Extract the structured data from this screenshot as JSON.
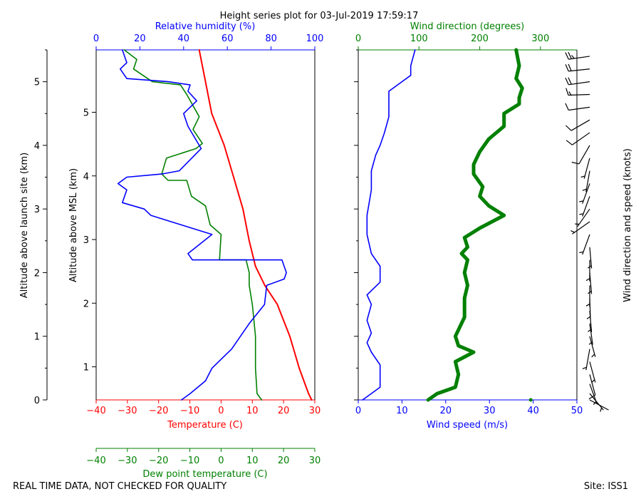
{
  "colors": {
    "temperature": "#ff0000",
    "dewpoint": "#008000",
    "humidity": "#0000ff",
    "wind_speed": "#0000ff",
    "wind_direction": "#008000",
    "axis": "#000000"
  },
  "footer": {
    "quality_note": "REAL TIME DATA, NOT CHECKED FOR QUALITY",
    "site": "Site: ISS1"
  },
  "chart_data": [
    {
      "type": "line",
      "title": "Height series plot for 03-Jul-2019 17:59:17",
      "ylabel_left": "Altitude above launch site (km)",
      "ylabel": "Altitude above MSL (km)",
      "ylim": [
        0,
        5.5
      ],
      "launch_site_ticks": [
        0,
        1,
        2,
        3,
        4,
        5
      ],
      "msl_ticks": [
        1,
        2,
        3,
        4,
        5
      ],
      "msl_tick_labels": [
        "1",
        "2",
        "3",
        "4",
        "5"
      ],
      "axes": {
        "temperature": {
          "label": "Temperature (C)",
          "range": [
            -40,
            30
          ],
          "ticks": [
            -40,
            -30,
            -20,
            -10,
            0,
            10,
            20,
            30
          ],
          "tick_labels": [
            "−40",
            "−30",
            "−20",
            "−10",
            "0",
            "10",
            "20",
            "30"
          ]
        },
        "dewpoint": {
          "label": "Dew point temperature (C)",
          "range": [
            -40,
            30
          ],
          "ticks": [
            -40,
            -30,
            -20,
            -10,
            0,
            10,
            20,
            30
          ],
          "tick_labels": [
            "−40",
            "−30",
            "−20",
            "−10",
            "0",
            "10",
            "20",
            "30"
          ]
        },
        "humidity": {
          "label": "Relative humidity (%)",
          "range": [
            0,
            100
          ],
          "ticks": [
            0,
            20,
            40,
            60,
            80,
            100
          ],
          "tick_labels": [
            "0",
            "20",
            "40",
            "60",
            "80",
            "100"
          ]
        }
      },
      "series": [
        {
          "name": "Temperature",
          "axis": "temperature",
          "points": [
            [
              29,
              0
            ],
            [
              28,
              0.1
            ],
            [
              25,
              0.5
            ],
            [
              22,
              1.0
            ],
            [
              18,
              1.5
            ],
            [
              14,
              1.8
            ],
            [
              11,
              2.1
            ],
            [
              10.5,
              2.2
            ],
            [
              9,
              2.5
            ],
            [
              7,
              3.0
            ],
            [
              4,
              3.5
            ],
            [
              1,
              4.0
            ],
            [
              -3,
              4.5
            ],
            [
              -5,
              5.0
            ],
            [
              -7,
              5.5
            ]
          ]
        },
        {
          "name": "Dew point",
          "axis": "dewpoint",
          "points": [
            [
              13,
              0
            ],
            [
              11.5,
              0.1
            ],
            [
              11,
              0.5
            ],
            [
              11,
              1.0
            ],
            [
              10,
              1.5
            ],
            [
              9,
              1.8
            ],
            [
              9,
              2.0
            ],
            [
              8,
              2.2
            ],
            [
              -0.5,
              2.2
            ],
            [
              0,
              2.6
            ],
            [
              -3.5,
              2.75
            ],
            [
              -5,
              3.05
            ],
            [
              -9.5,
              3.2
            ],
            [
              -11,
              3.45
            ],
            [
              -17,
              3.45
            ],
            [
              -19,
              3.55
            ],
            [
              -17.5,
              3.8
            ],
            [
              -8,
              3.95
            ],
            [
              -6,
              4.03
            ],
            [
              -9,
              4.25
            ],
            [
              -7,
              4.45
            ],
            [
              -11,
              4.8
            ],
            [
              -13,
              4.95
            ],
            [
              -22,
              5.0
            ],
            [
              -28,
              5.2
            ],
            [
              -27,
              5.35
            ],
            [
              -31,
              5.5
            ]
          ]
        },
        {
          "name": "Relative humidity",
          "axis": "humidity",
          "points": [
            [
              39,
              0
            ],
            [
              43,
              0.1
            ],
            [
              50,
              0.3
            ],
            [
              53,
              0.5
            ],
            [
              62,
              0.8
            ],
            [
              66,
              1.0
            ],
            [
              70,
              1.2
            ],
            [
              77,
              1.5
            ],
            [
              78,
              1.8
            ],
            [
              86,
              1.9
            ],
            [
              87,
              2.0
            ],
            [
              85,
              2.2
            ],
            [
              44,
              2.2
            ],
            [
              42,
              2.3
            ],
            [
              53,
              2.6
            ],
            [
              39,
              2.75
            ],
            [
              25,
              2.9
            ],
            [
              22,
              3.0
            ],
            [
              12,
              3.1
            ],
            [
              14,
              3.3
            ],
            [
              10,
              3.4
            ],
            [
              14,
              3.5
            ],
            [
              30,
              3.55
            ],
            [
              38,
              3.6
            ],
            [
              48,
              3.95
            ],
            [
              42,
              4.3
            ],
            [
              40,
              4.5
            ],
            [
              46,
              4.7
            ],
            [
              42,
              4.85
            ],
            [
              43,
              4.95
            ],
            [
              33,
              5.0
            ],
            [
              14,
              5.05
            ],
            [
              11,
              5.2
            ],
            [
              14,
              5.3
            ],
            [
              12,
              5.5
            ]
          ]
        }
      ]
    },
    {
      "type": "line",
      "axes": {
        "wind_speed": {
          "label": "Wind speed (m/s)",
          "range": [
            0,
            50
          ],
          "ticks": [
            0,
            10,
            20,
            30,
            40,
            50
          ],
          "tick_labels": [
            "0",
            "10",
            "20",
            "30",
            "40",
            "50"
          ]
        },
        "wind_direction": {
          "label": "Wind direction (degrees)",
          "range": [
            0,
            360
          ],
          "ticks": [
            0,
            100,
            200,
            300
          ],
          "tick_labels": [
            "0",
            "100",
            "200",
            "300"
          ]
        }
      },
      "series": [
        {
          "name": "Wind speed",
          "axis": "wind_speed",
          "points": [
            [
              1,
              0
            ],
            [
              3,
              0.1
            ],
            [
              5,
              0.2
            ],
            [
              5,
              0.55
            ],
            [
              3,
              0.75
            ],
            [
              2,
              0.9
            ],
            [
              3,
              1.05
            ],
            [
              2,
              1.25
            ],
            [
              3,
              1.5
            ],
            [
              2,
              1.65
            ],
            [
              5,
              1.85
            ],
            [
              5,
              2.1
            ],
            [
              3,
              2.3
            ],
            [
              2,
              2.6
            ],
            [
              2,
              2.9
            ],
            [
              3,
              3.3
            ],
            [
              3,
              3.6
            ],
            [
              4,
              3.85
            ],
            [
              5,
              4.0
            ],
            [
              6,
              4.2
            ],
            [
              7,
              4.45
            ],
            [
              7,
              4.6
            ],
            [
              7,
              4.85
            ],
            [
              10,
              5.0
            ],
            [
              12,
              5.1
            ],
            [
              12,
              5.25
            ],
            [
              13,
              5.5
            ]
          ]
        },
        {
          "name": "Wind direction",
          "axis": "wind_direction",
          "points": [
            [
              115,
              0
            ],
            [
              130,
              0.1
            ],
            [
              160,
              0.2
            ],
            [
              165,
              0.4
            ],
            [
              160,
              0.6
            ],
            [
              190,
              0.75
            ],
            [
              165,
              0.85
            ],
            [
              160,
              1.0
            ],
            [
              175,
              1.3
            ],
            [
              175,
              1.6
            ],
            [
              180,
              1.8
            ],
            [
              175,
              2.0
            ],
            [
              180,
              2.2
            ],
            [
              170,
              2.3
            ],
            [
              180,
              2.4
            ],
            [
              175,
              2.55
            ],
            [
              200,
              2.7
            ],
            [
              240,
              2.9
            ],
            [
              215,
              3.05
            ],
            [
              200,
              3.2
            ],
            [
              205,
              3.35
            ],
            [
              190,
              3.55
            ],
            [
              190,
              3.7
            ],
            [
              200,
              3.9
            ],
            [
              215,
              4.1
            ],
            [
              240,
              4.3
            ],
            [
              240,
              4.5
            ],
            [
              265,
              4.65
            ],
            [
              265,
              4.75
            ],
            [
              270,
              4.9
            ],
            [
              260,
              5.05
            ],
            [
              265,
              5.25
            ],
            [
              260,
              5.5
            ]
          ]
        }
      ],
      "isolated_point": {
        "axis": "wind_direction",
        "direction": 284,
        "altitude": 0
      }
    },
    {
      "type": "wind_barbs",
      "label": "Wind direction and speed (knots)",
      "barbs": [
        {
          "alt": 0.0,
          "dir": 118,
          "spd": 4
        },
        {
          "alt": 0.1,
          "dir": 140,
          "spd": 8
        },
        {
          "alt": 0.25,
          "dir": 160,
          "spd": 8
        },
        {
          "alt": 0.4,
          "dir": 165,
          "spd": 10
        },
        {
          "alt": 0.6,
          "dir": 165,
          "spd": 8
        },
        {
          "alt": 0.8,
          "dir": 190,
          "spd": 6
        },
        {
          "alt": 1.0,
          "dir": 165,
          "spd": 5
        },
        {
          "alt": 1.2,
          "dir": 172,
          "spd": 5
        },
        {
          "alt": 1.4,
          "dir": 175,
          "spd": 5
        },
        {
          "alt": 1.6,
          "dir": 178,
          "spd": 5
        },
        {
          "alt": 1.8,
          "dir": 180,
          "spd": 8
        },
        {
          "alt": 2.0,
          "dir": 175,
          "spd": 8
        },
        {
          "alt": 2.2,
          "dir": 180,
          "spd": 6
        },
        {
          "alt": 2.4,
          "dir": 175,
          "spd": 5
        },
        {
          "alt": 2.6,
          "dir": 200,
          "spd": 5
        },
        {
          "alt": 2.8,
          "dir": 235,
          "spd": 5
        },
        {
          "alt": 3.0,
          "dir": 215,
          "spd": 6
        },
        {
          "alt": 3.2,
          "dir": 200,
          "spd": 6
        },
        {
          "alt": 3.4,
          "dir": 200,
          "spd": 7
        },
        {
          "alt": 3.6,
          "dir": 190,
          "spd": 8
        },
        {
          "alt": 3.8,
          "dir": 195,
          "spd": 9
        },
        {
          "alt": 4.0,
          "dir": 210,
          "spd": 10
        },
        {
          "alt": 4.2,
          "dir": 235,
          "spd": 12
        },
        {
          "alt": 4.4,
          "dir": 240,
          "spd": 13
        },
        {
          "alt": 4.6,
          "dir": 262,
          "spd": 14
        },
        {
          "alt": 4.8,
          "dir": 268,
          "spd": 15
        },
        {
          "alt": 5.0,
          "dir": 262,
          "spd": 20
        },
        {
          "alt": 5.2,
          "dir": 264,
          "spd": 23
        },
        {
          "alt": 5.4,
          "dir": 262,
          "spd": 25
        }
      ]
    }
  ]
}
